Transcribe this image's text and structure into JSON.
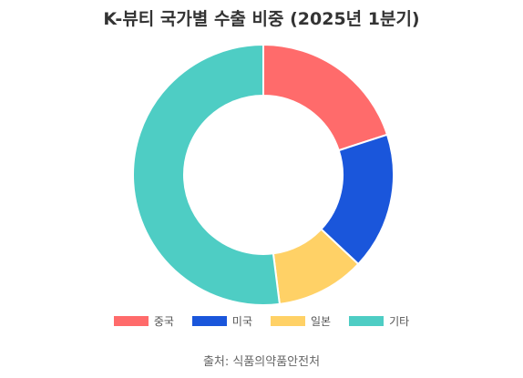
{
  "chart_data": {
    "type": "pie",
    "donut": true,
    "title": "K-뷰티 국가별 수출 비중 (2025년 1분기)",
    "categories": [
      "중국",
      "미국",
      "일본",
      "기타"
    ],
    "values": [
      20,
      17,
      11,
      52
    ],
    "colors": [
      "#FF6B6B",
      "#1A56DB",
      "#FFD166",
      "#4ECDC4"
    ],
    "legend_position": "bottom",
    "source": "출처: 식품의약품안전처"
  }
}
